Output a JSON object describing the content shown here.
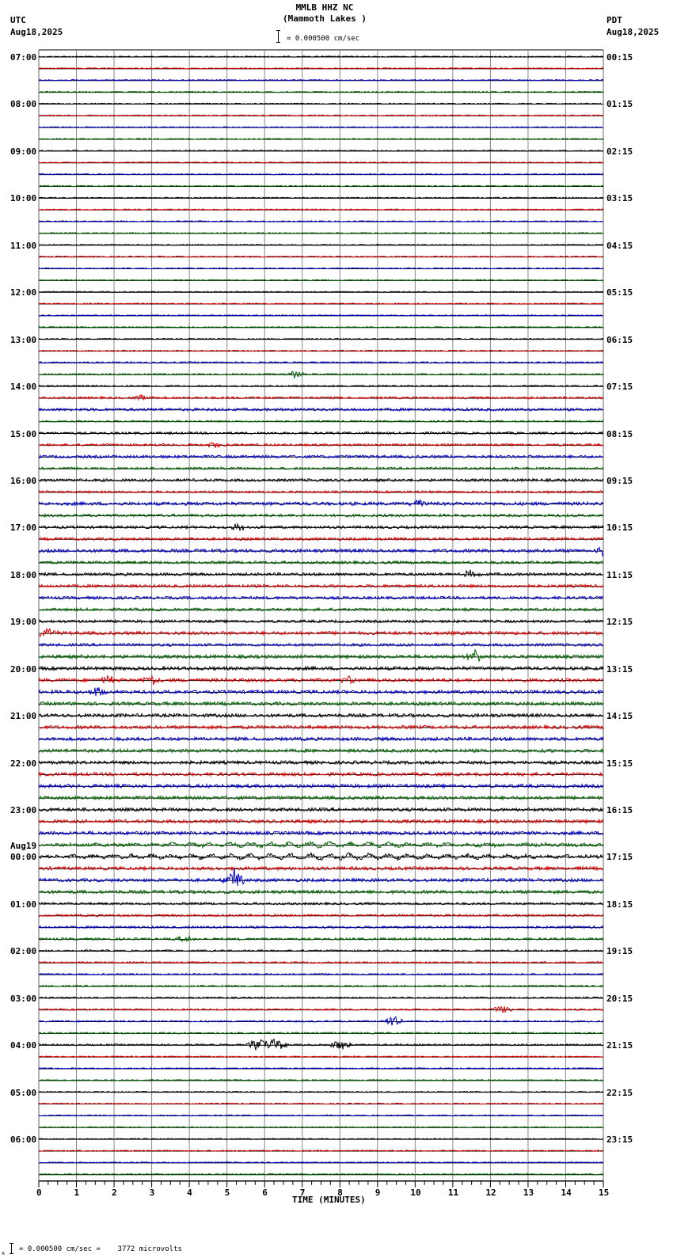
{
  "header": {
    "station": "MMLB HHZ NC",
    "location": "(Mammoth Lakes )",
    "scale_label": "= 0.000500 cm/sec",
    "left_tz": "UTC",
    "left_date": "Aug18,2025",
    "right_tz": "PDT",
    "right_date": "Aug18,2025"
  },
  "footer": {
    "scale_note": "= 0.000500 cm/sec =    3772 microvolts",
    "scale_prefix": "x"
  },
  "colors": {
    "trace_cycle": [
      "#000000",
      "#dd0000",
      "#0000cc",
      "#006600"
    ],
    "grid": "#888888",
    "baseline": "#000000"
  },
  "chart_data": {
    "type": "line",
    "title": "MMLB HHZ NC (Mammoth Lakes )",
    "xlabel": "TIME (MINUTES)",
    "ylabel": "",
    "xlim": [
      0,
      15
    ],
    "x_ticks": [
      "0",
      "1",
      "2",
      "3",
      "4",
      "5",
      "6",
      "7",
      "8",
      "9",
      "10",
      "11",
      "12",
      "13",
      "14",
      "15"
    ],
    "grid": true,
    "traces_per_hour": 4,
    "minutes_per_trace": 15,
    "left_labels": [
      {
        "row": 0,
        "text": "07:00"
      },
      {
        "row": 4,
        "text": "08:00"
      },
      {
        "row": 8,
        "text": "09:00"
      },
      {
        "row": 12,
        "text": "10:00"
      },
      {
        "row": 16,
        "text": "11:00"
      },
      {
        "row": 20,
        "text": "12:00"
      },
      {
        "row": 24,
        "text": "13:00"
      },
      {
        "row": 28,
        "text": "14:00"
      },
      {
        "row": 32,
        "text": "15:00"
      },
      {
        "row": 36,
        "text": "16:00"
      },
      {
        "row": 40,
        "text": "17:00"
      },
      {
        "row": 44,
        "text": "18:00"
      },
      {
        "row": 48,
        "text": "19:00"
      },
      {
        "row": 52,
        "text": "20:00"
      },
      {
        "row": 56,
        "text": "21:00"
      },
      {
        "row": 60,
        "text": "22:00"
      },
      {
        "row": 64,
        "text": "23:00"
      },
      {
        "row": 68,
        "text": "00:00",
        "date": "Aug19"
      },
      {
        "row": 72,
        "text": "01:00"
      },
      {
        "row": 76,
        "text": "02:00"
      },
      {
        "row": 80,
        "text": "03:00"
      },
      {
        "row": 84,
        "text": "04:00"
      },
      {
        "row": 88,
        "text": "05:00"
      },
      {
        "row": 92,
        "text": "06:00"
      }
    ],
    "right_labels": [
      {
        "row": 0,
        "text": "00:15"
      },
      {
        "row": 4,
        "text": "01:15"
      },
      {
        "row": 8,
        "text": "02:15"
      },
      {
        "row": 12,
        "text": "03:15"
      },
      {
        "row": 16,
        "text": "04:15"
      },
      {
        "row": 20,
        "text": "05:15"
      },
      {
        "row": 24,
        "text": "06:15"
      },
      {
        "row": 28,
        "text": "07:15"
      },
      {
        "row": 32,
        "text": "08:15"
      },
      {
        "row": 36,
        "text": "09:15"
      },
      {
        "row": 40,
        "text": "10:15"
      },
      {
        "row": 44,
        "text": "11:15"
      },
      {
        "row": 48,
        "text": "12:15"
      },
      {
        "row": 52,
        "text": "13:15"
      },
      {
        "row": 56,
        "text": "14:15"
      },
      {
        "row": 60,
        "text": "15:15"
      },
      {
        "row": 64,
        "text": "16:15"
      },
      {
        "row": 68,
        "text": "17:15"
      },
      {
        "row": 72,
        "text": "18:15"
      },
      {
        "row": 76,
        "text": "19:15"
      },
      {
        "row": 80,
        "text": "20:15"
      },
      {
        "row": 84,
        "text": "21:15"
      },
      {
        "row": 88,
        "text": "22:15"
      },
      {
        "row": 92,
        "text": "23:15"
      }
    ],
    "noise_level_by_row": [
      1,
      1,
      1,
      1,
      1,
      1,
      1,
      1,
      1,
      1,
      1,
      1,
      1,
      1,
      1,
      1,
      1,
      1,
      1,
      1,
      1,
      1,
      1,
      1,
      1,
      1,
      1.5,
      1.5,
      1.5,
      2,
      2.5,
      1.5,
      2,
      2,
      2.5,
      2,
      2.5,
      2,
      3,
      2.5,
      2.5,
      2.5,
      3,
      2.5,
      2.5,
      2.5,
      2.5,
      2.5,
      2.5,
      3,
      2.5,
      3,
      3,
      3,
      3,
      3,
      3,
      3,
      3,
      3,
      3,
      3,
      3,
      3,
      3,
      3,
      3,
      3,
      3,
      3,
      3,
      3,
      2,
      2,
      2,
      2,
      1.5,
      1.5,
      1.5,
      1.5,
      1.5,
      1.5,
      1.5,
      1.5,
      1.5,
      1,
      1,
      1,
      1,
      1,
      1,
      1,
      1,
      1,
      1,
      1
    ],
    "events": [
      {
        "row": 27,
        "minute": 6.8,
        "amplitude": 4
      },
      {
        "row": 29,
        "minute": 2.8,
        "amplitude": 4
      },
      {
        "row": 33,
        "minute": 4.7,
        "amplitude": 4
      },
      {
        "row": 38,
        "minute": 10.1,
        "amplitude": 5
      },
      {
        "row": 40,
        "minute": 5.3,
        "amplitude": 5
      },
      {
        "row": 42,
        "minute": 15.0,
        "amplitude": 6
      },
      {
        "row": 44,
        "minute": 11.5,
        "amplitude": 5
      },
      {
        "row": 49,
        "minute": 0.2,
        "amplitude": 6
      },
      {
        "row": 51,
        "minute": 11.6,
        "amplitude": 7
      },
      {
        "row": 53,
        "minute": 1.8,
        "amplitude": 5
      },
      {
        "row": 53,
        "minute": 3.0,
        "amplitude": 6
      },
      {
        "row": 53,
        "minute": 8.2,
        "amplitude": 5
      },
      {
        "row": 54,
        "minute": 1.5,
        "amplitude": 6
      },
      {
        "row": 67,
        "minute": 7.5,
        "amplitude": 4,
        "wavy": true
      },
      {
        "row": 68,
        "minute": 7.5,
        "amplitude": 5,
        "wavy": true
      },
      {
        "row": 70,
        "minute": 5.2,
        "amplitude": 14
      },
      {
        "row": 75,
        "minute": 3.9,
        "amplitude": 5
      },
      {
        "row": 81,
        "minute": 12.3,
        "amplitude": 5
      },
      {
        "row": 82,
        "minute": 9.4,
        "amplitude": 7
      },
      {
        "row": 84,
        "minute": 5.8,
        "amplitude": 10
      },
      {
        "row": 84,
        "minute": 6.3,
        "amplitude": 9
      },
      {
        "row": 84,
        "minute": 8.0,
        "amplitude": 7
      }
    ]
  }
}
